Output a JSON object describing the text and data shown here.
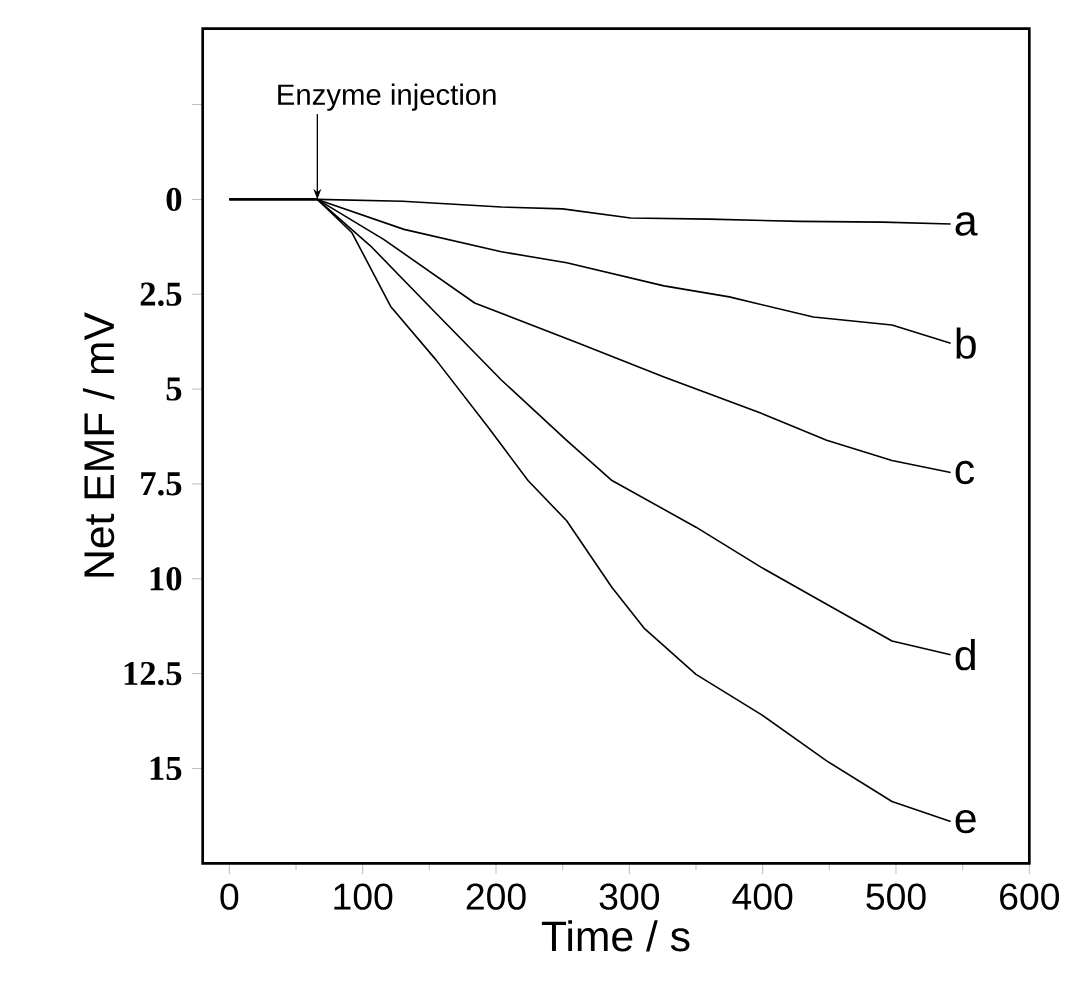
{
  "chart_data": {
    "type": "line",
    "xlabel": "Time / s",
    "ylabel": "Net EMF / mV",
    "xlim": [
      -20,
      600
    ],
    "ylim": [
      17.5,
      -4.5
    ],
    "xticks": [
      0,
      100,
      200,
      300,
      400,
      500,
      600
    ],
    "yticks": [
      {
        "value": -2.5,
        "label": null
      },
      0,
      2.5,
      5,
      7.5,
      10,
      12.5,
      15
    ],
    "grid": false,
    "legend": false,
    "marker": "none",
    "line_style": "solid",
    "annotations": [
      {
        "text": "Enzyme injection",
        "x": 66,
        "y": 0
      }
    ],
    "series": [
      {
        "name": "a",
        "color": "#000000",
        "x": [
          0,
          40,
          66,
          130,
          204,
          250,
          301,
          360,
          428,
          490,
          541
        ],
        "values": [
          0,
          0,
          0,
          0.05,
          0.2,
          0.25,
          0.49,
          0.52,
          0.58,
          0.6,
          0.65
        ]
      },
      {
        "name": "b",
        "color": "#000000",
        "x": [
          0,
          40,
          66,
          131,
          204,
          253,
          326,
          375,
          438,
          497,
          541
        ],
        "values": [
          0,
          0,
          0,
          0.79,
          1.38,
          1.67,
          2.28,
          2.57,
          3.1,
          3.31,
          3.79
        ]
      },
      {
        "name": "c",
        "color": "#000000",
        "x": [
          0,
          40,
          66,
          116,
          184,
          262,
          326,
          399,
          448,
          497,
          541
        ],
        "values": [
          0,
          0,
          0,
          1.06,
          2.73,
          3.79,
          4.68,
          5.64,
          6.35,
          6.88,
          7.2
        ]
      },
      {
        "name": "d",
        "color": "#000000",
        "x": [
          0,
          40,
          66,
          106,
          155,
          204,
          253,
          287,
          350,
          399,
          448,
          497,
          541
        ],
        "values": [
          0,
          0,
          0,
          1.23,
          3.0,
          4.76,
          6.35,
          7.41,
          8.64,
          9.7,
          10.67,
          11.64,
          12.0
        ]
      },
      {
        "name": "e",
        "color": "#000000",
        "x": [
          0,
          40,
          66,
          92,
          121,
          155,
          194,
          224,
          253,
          287,
          311,
          350,
          399,
          448,
          497,
          541
        ],
        "values": [
          0,
          0,
          0,
          0.88,
          2.82,
          4.23,
          6.0,
          7.41,
          8.47,
          10.23,
          11.3,
          12.52,
          13.58,
          14.8,
          15.87,
          16.4
        ]
      }
    ]
  }
}
